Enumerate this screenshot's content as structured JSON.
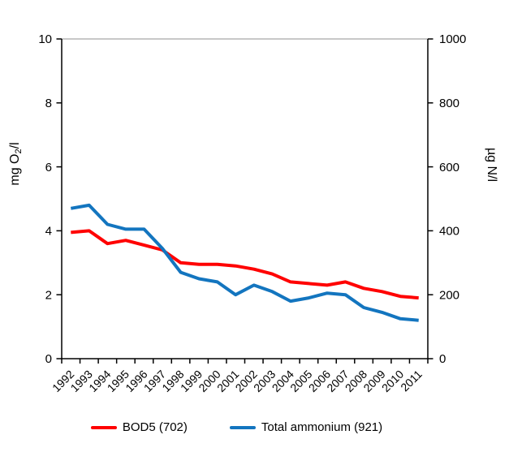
{
  "chart_data": {
    "type": "line",
    "categories": [
      "1992",
      "1993",
      "1994",
      "1995",
      "1996",
      "1997",
      "1998",
      "1999",
      "2000",
      "2001",
      "2002",
      "2003",
      "2004",
      "2005",
      "2006",
      "2007",
      "2008",
      "2009",
      "2010",
      "2011"
    ],
    "series": [
      {
        "name": "BOD5 (702)",
        "axis": "left",
        "color": "#FF0000",
        "values": [
          3.95,
          4.0,
          3.6,
          3.7,
          3.55,
          3.4,
          3.0,
          2.95,
          2.95,
          2.9,
          2.8,
          2.65,
          2.4,
          2.35,
          2.3,
          2.4,
          2.2,
          2.1,
          1.95,
          1.9
        ]
      },
      {
        "name": "Total ammonium (921)",
        "axis": "right",
        "color": "#1375BF",
        "values": [
          470,
          480,
          420,
          405,
          405,
          345,
          270,
          250,
          240,
          200,
          230,
          210,
          180,
          190,
          205,
          200,
          160,
          145,
          125,
          120
        ]
      }
    ],
    "left_axis_title": {
      "pre": "mg O",
      "sub": "2",
      "post": "/l"
    },
    "right_axis_title": "µg N/l",
    "left_ticks": [
      0,
      2,
      4,
      6,
      8,
      10
    ],
    "right_ticks": [
      0,
      200,
      400,
      600,
      800,
      1000
    ],
    "left_ylim": [
      0,
      10
    ],
    "right_ylim": [
      0,
      1000
    ],
    "grid": "top-line-only",
    "legend_position": "bottom",
    "colors": {
      "axis": "#000000",
      "top_gridline": "#A6A6A6",
      "background": "#FFFFFF"
    }
  }
}
